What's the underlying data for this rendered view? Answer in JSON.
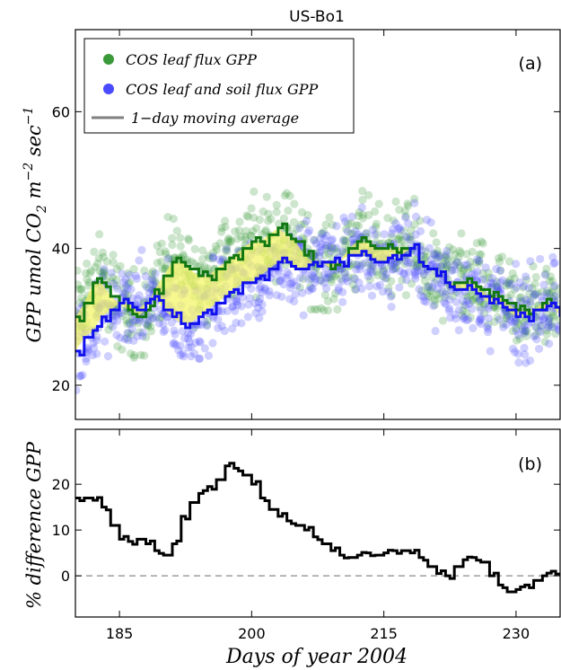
{
  "chart_data": [
    {
      "panel": "(a)",
      "type": "scatter",
      "title": "US-Bo1",
      "ylabel": "GPP umol CO2 m^-2 sec^-1",
      "ylabel_parts": {
        "base": "GPP umol CO",
        "sub": "2",
        "m": " m",
        "m_exp": "−2",
        "sec": " sec",
        "sec_exp": "−1"
      },
      "xlim": [
        180,
        235
      ],
      "ylim": [
        15,
        72
      ],
      "yticks": [
        20,
        40,
        60
      ],
      "grid": false,
      "legend_position": "top-left",
      "legend": [
        {
          "label": "COS leaf flux GPP",
          "color": "#3a9a3a",
          "marker": "circle"
        },
        {
          "label": "COS leaf and soil flux GPP",
          "color": "#4a4aff",
          "marker": "circle"
        },
        {
          "label": "1−day moving average",
          "color": "#808080",
          "marker": "line"
        }
      ],
      "fill_between_color": "#f4f46a",
      "series": [
        {
          "name": "COS leaf flux GPP",
          "kind": "moving-average",
          "color": "#117711",
          "x": [
            180,
            181,
            182,
            183,
            184,
            185,
            186,
            187,
            188,
            189,
            190,
            191,
            192,
            193,
            194,
            195,
            196,
            197,
            198,
            199,
            200,
            201,
            202,
            203,
            204,
            205,
            206,
            207,
            208,
            209,
            210,
            211,
            212,
            213,
            214,
            215,
            216,
            217,
            218,
            219,
            220,
            221,
            222,
            223,
            224,
            225,
            226,
            227,
            228,
            229,
            230,
            231,
            232,
            233,
            234,
            235
          ],
          "y": [
            30,
            32,
            35,
            35,
            33,
            32,
            31,
            30,
            31,
            34,
            36,
            38,
            38,
            37,
            36,
            36,
            37,
            38,
            39,
            40,
            41,
            41,
            42,
            43,
            42,
            41,
            39,
            38,
            38,
            37,
            38,
            40,
            41,
            41,
            40,
            40,
            40,
            40,
            40,
            38,
            37,
            36,
            35,
            35,
            35,
            35,
            34,
            33,
            33,
            32,
            31,
            31,
            31,
            32,
            32,
            31
          ]
        },
        {
          "name": "COS leaf and soil flux GPP",
          "kind": "moving-average",
          "color": "#1111ee",
          "x": [
            180,
            181,
            182,
            183,
            184,
            185,
            186,
            187,
            188,
            189,
            190,
            191,
            192,
            193,
            194,
            195,
            196,
            197,
            198,
            199,
            200,
            201,
            202,
            203,
            204,
            205,
            206,
            207,
            208,
            209,
            210,
            211,
            212,
            213,
            214,
            215,
            216,
            217,
            218,
            219,
            220,
            221,
            222,
            223,
            224,
            225,
            226,
            227,
            228,
            229,
            230,
            231,
            232,
            233,
            234,
            235
          ],
          "y": [
            25,
            27,
            28,
            30,
            31,
            32,
            32,
            31,
            32,
            33,
            31,
            30,
            29,
            29,
            30,
            31,
            32,
            33,
            34,
            35,
            35,
            36,
            37,
            38,
            38,
            37,
            37,
            38,
            38,
            38,
            38,
            39,
            39,
            39,
            38,
            38,
            39,
            39,
            40,
            38,
            37,
            36,
            35,
            34,
            34,
            34,
            33,
            32,
            32,
            31,
            30,
            30,
            31,
            31,
            32,
            30
          ]
        }
      ],
      "scatter_note_scale": {
        "leaf_spread": 5.5,
        "soil_spread": 5.5
      }
    },
    {
      "panel": "(b)",
      "type": "line",
      "ylabel": "% difference GPP",
      "xlabel": "Days of year 2004",
      "xlim": [
        180,
        235
      ],
      "ylim": [
        -9,
        32
      ],
      "xticks": [
        185,
        200,
        215,
        230
      ],
      "yticks": [
        0,
        10,
        20
      ],
      "reference_line": {
        "y": 0,
        "style": "dashed",
        "color": "#888888"
      },
      "series": [
        {
          "name": "% difference",
          "color": "#000000",
          "x": [
            180,
            181,
            182,
            183,
            184,
            185,
            186,
            187,
            188,
            189,
            190,
            191,
            192,
            193,
            194,
            195,
            196,
            197,
            198,
            199,
            200,
            201,
            202,
            203,
            204,
            205,
            206,
            207,
            208,
            209,
            210,
            211,
            212,
            213,
            214,
            215,
            216,
            217,
            218,
            219,
            220,
            221,
            222,
            223,
            224,
            225,
            226,
            227,
            228,
            229,
            230,
            231,
            232,
            233,
            234,
            235
          ],
          "y": [
            17,
            17,
            16.5,
            15,
            11,
            8,
            7.5,
            8,
            7,
            5.5,
            4.5,
            7,
            13,
            16,
            18,
            19.5,
            21,
            24,
            23.5,
            22,
            20,
            17,
            14.5,
            13,
            12,
            11,
            10,
            8.5,
            7,
            5.5,
            4.5,
            4,
            4.5,
            5,
            4.5,
            5,
            5.5,
            5.5,
            5,
            4,
            2,
            0.5,
            0,
            2,
            3.5,
            4,
            3,
            0,
            -2,
            -3.5,
            -3,
            -2,
            -1,
            0,
            1,
            0.5
          ]
        }
      ]
    }
  ]
}
